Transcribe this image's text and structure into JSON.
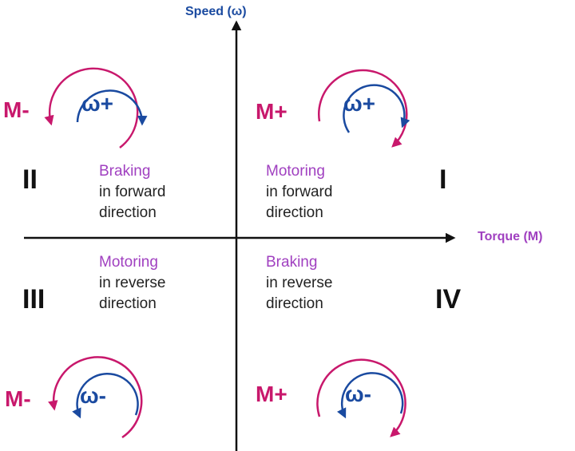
{
  "axes": {
    "y_label": "Speed (ω)",
    "x_label": "Torque (M)"
  },
  "colors": {
    "torque": "#c8186c",
    "speed": "#1a4aa0",
    "mode": "#a040c0",
    "axis": "#111111"
  },
  "quadrants": [
    {
      "numeral": "I",
      "mode": "Motoring",
      "line1": "in forward",
      "line2": "direction",
      "torque": "M+",
      "speed": "ω+",
      "torque_rotation": "clockwise",
      "speed_rotation": "clockwise"
    },
    {
      "numeral": "II",
      "mode": "Braking",
      "line1": "in forward",
      "line2": "direction",
      "torque": "M-",
      "speed": "ω+",
      "torque_rotation": "counterclockwise",
      "speed_rotation": "clockwise"
    },
    {
      "numeral": "III",
      "mode": "Motoring",
      "line1": "in reverse",
      "line2": "direction",
      "torque": "M-",
      "speed": "ω-",
      "torque_rotation": "counterclockwise",
      "speed_rotation": "counterclockwise"
    },
    {
      "numeral": "IV",
      "mode": "Braking",
      "line1": "in reverse",
      "line2": "direction",
      "torque": "M+",
      "speed": "ω-",
      "torque_rotation": "clockwise",
      "speed_rotation": "counterclockwise"
    }
  ]
}
